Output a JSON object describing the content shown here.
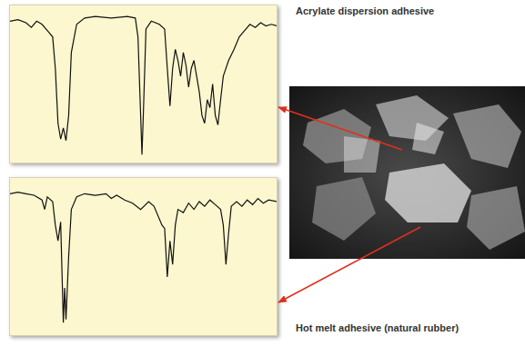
{
  "chart_data": [
    {
      "type": "line",
      "title": "Acrylate dispersion adhesive",
      "x": [
        0,
        3,
        6,
        8,
        10,
        12,
        14,
        16,
        17,
        18,
        19,
        20,
        21,
        22,
        23,
        25,
        28,
        32,
        38,
        44,
        47,
        48,
        49,
        49.5,
        50,
        51,
        53,
        56,
        58,
        59,
        60,
        61,
        62,
        63,
        64,
        65,
        66,
        67,
        68,
        69,
        70,
        71,
        72,
        73,
        74,
        75,
        76,
        77,
        78,
        79,
        80,
        82,
        84,
        86,
        88,
        90,
        92,
        94,
        96,
        98,
        100
      ],
      "values": [
        90,
        91,
        89,
        86,
        90,
        88,
        84,
        80,
        60,
        25,
        15,
        22,
        14,
        30,
        70,
        88,
        92,
        93,
        92,
        93,
        92,
        80,
        30,
        5,
        30,
        85,
        90,
        88,
        85,
        60,
        36,
        60,
        72,
        65,
        55,
        70,
        62,
        48,
        60,
        65,
        55,
        45,
        30,
        25,
        40,
        35,
        50,
        30,
        24,
        40,
        55,
        65,
        72,
        80,
        84,
        88,
        86,
        89,
        87,
        88,
        87
      ],
      "color": "#111111",
      "xlim": [
        0,
        100
      ],
      "ylim": [
        0,
        100
      ],
      "tick_labels": false
    },
    {
      "type": "line",
      "title": "Hot melt adhesive (natural rubber)",
      "x": [
        0,
        3,
        6,
        9,
        12,
        13,
        14,
        16,
        17,
        18,
        19,
        19.5,
        20,
        20.5,
        21,
        22,
        23,
        25,
        28,
        32,
        36,
        38,
        40,
        43,
        46,
        49,
        52,
        54,
        57,
        58,
        59,
        60,
        61,
        62,
        63,
        65,
        67,
        69,
        71,
        73,
        75,
        77,
        79,
        80,
        81,
        82,
        83,
        85,
        87,
        89,
        91,
        93,
        95,
        97,
        100
      ],
      "values": [
        90,
        91,
        90,
        89,
        86,
        80,
        88,
        85,
        70,
        60,
        72,
        40,
        8,
        30,
        10,
        50,
        80,
        88,
        90,
        89,
        90,
        87,
        89,
        86,
        84,
        80,
        85,
        82,
        70,
        68,
        37,
        60,
        45,
        70,
        80,
        78,
        84,
        80,
        85,
        82,
        86,
        83,
        80,
        70,
        45,
        65,
        82,
        85,
        82,
        86,
        83,
        87,
        84,
        86,
        85
      ],
      "color": "#111111",
      "xlim": [
        0,
        100
      ],
      "ylim": [
        0,
        100
      ],
      "tick_labels": false
    }
  ]
}
